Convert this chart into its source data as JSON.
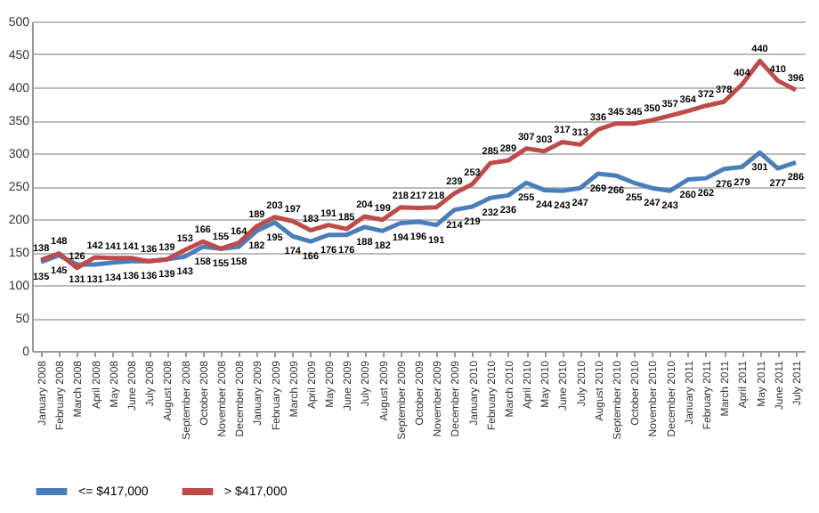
{
  "chart_data": {
    "type": "line",
    "categories": [
      "January 2008",
      "February 2008",
      "March 2008",
      "April 2008",
      "May 2008",
      "June 2008",
      "July 2008",
      "August 2008",
      "September 2008",
      "October 2008",
      "November 2008",
      "December 2008",
      "January 2009",
      "February 2009",
      "March 2009",
      "April 2009",
      "May 2009",
      "June 2009",
      "July 2009",
      "August 2009",
      "September 2009",
      "October 2009",
      "November 2009",
      "December 2009",
      "January 2010",
      "February 2010",
      "March 2010",
      "April 2010",
      "May 2010",
      "June 2010",
      "July 2010",
      "August 2010",
      "September 2010",
      "October 2010",
      "November 2010",
      "December 2010",
      "January 2011",
      "February 2011",
      "March 2011",
      "April 2011",
      "May 2011",
      "June 2011",
      "July 2011"
    ],
    "series": [
      {
        "name": "<= $417,000",
        "color": "#4a7ebb",
        "values": [
          135,
          145,
          131,
          131,
          134,
          136,
          136,
          139,
          143,
          158,
          155,
          158,
          182,
          195,
          174,
          166,
          176,
          176,
          188,
          182,
          194,
          196,
          191,
          214,
          219,
          232,
          236,
          255,
          244,
          243,
          247,
          269,
          266,
          255,
          247,
          243,
          260,
          262,
          276,
          279,
          301,
          277,
          286
        ]
      },
      {
        "name": "> $417,000",
        "color": "#be4b48",
        "values": [
          138,
          148,
          126,
          142,
          141,
          141,
          136,
          139,
          153,
          166,
          155,
          164,
          189,
          203,
          197,
          183,
          191,
          185,
          204,
          199,
          218,
          217,
          218,
          239,
          253,
          285,
          289,
          307,
          303,
          317,
          313,
          336,
          345,
          345,
          350,
          357,
          364,
          372,
          378,
          404,
          440,
          410,
          396
        ]
      }
    ],
    "ylim": [
      0,
      500
    ],
    "yticks": [
      0,
      50,
      100,
      150,
      200,
      250,
      300,
      350,
      400,
      450,
      500
    ],
    "grid": "y",
    "legend": "bottom",
    "data_labels": true,
    "marker": "none",
    "line_style": "solid"
  }
}
